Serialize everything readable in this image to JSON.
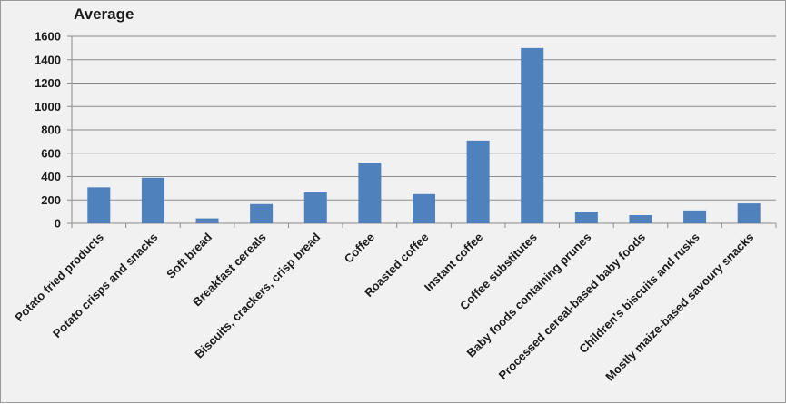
{
  "chart_data": {
    "type": "bar",
    "title": "Average",
    "categories": [
      "Potato fried products",
      "Potato crisps and snacks",
      "Soft bread",
      "Breakfast cereals",
      "Biscuits, crackers, crisp bread",
      "Coffee",
      "Roasted coffee",
      "Instant coffee",
      "Coffee substitutes",
      "Baby foods containing prunes",
      "Processed cereal-based baby foods",
      "Children's biscuits and rusks",
      "Mostly maize-based savoury snacks"
    ],
    "values": [
      308,
      390,
      42,
      165,
      264,
      520,
      250,
      708,
      1500,
      100,
      70,
      110,
      170
    ],
    "ylim": [
      0,
      1600
    ],
    "yticks": [
      0,
      200,
      400,
      600,
      800,
      1000,
      1200,
      1400,
      1600
    ],
    "grid": true,
    "legend": "none",
    "bar_color": "#4f81bd"
  }
}
